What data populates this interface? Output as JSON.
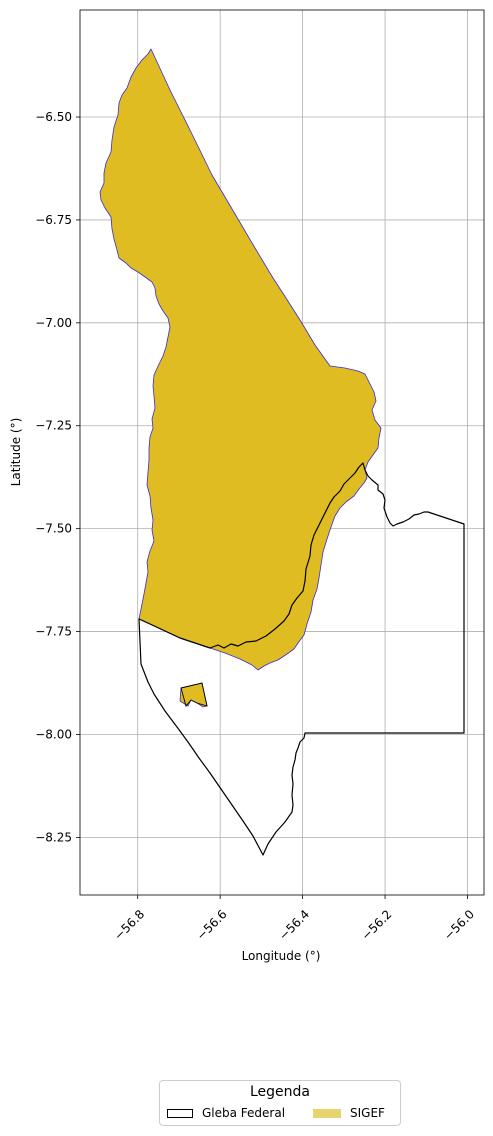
{
  "map": {
    "ylabel": "Latitude (°)",
    "xlabel": "Longitude (°)",
    "x_ticks": [
      "−56.8",
      "−56.6",
      "−56.4",
      "−56.2",
      "−56.0"
    ],
    "x_tick_values": [
      -56.8,
      -56.6,
      -56.4,
      -56.2,
      -56.0
    ],
    "y_ticks": [
      "−6.50",
      "−6.75",
      "−7.00",
      "−7.25",
      "−7.50",
      "−7.75",
      "−8.00",
      "−8.25"
    ],
    "y_tick_values": [
      -6.5,
      -6.75,
      -7.0,
      -7.25,
      -7.5,
      -7.75,
      -8.0,
      -8.25
    ],
    "xlim": [
      -56.94,
      -55.96
    ],
    "ylim": [
      -8.39,
      -6.24
    ],
    "grid": true,
    "colors": {
      "sigef_fill": "#dfbc21",
      "sigef_edge": "#3b2bd0",
      "gleba_edge": "#000000",
      "grid": "#b0b0b0"
    }
  },
  "legend": {
    "title": "Legenda",
    "entries": [
      {
        "label": "Gleba Federal",
        "swatch": "outline"
      },
      {
        "label": "SIGEF",
        "swatch": "fill"
      }
    ],
    "placement": "bottom-center"
  }
}
